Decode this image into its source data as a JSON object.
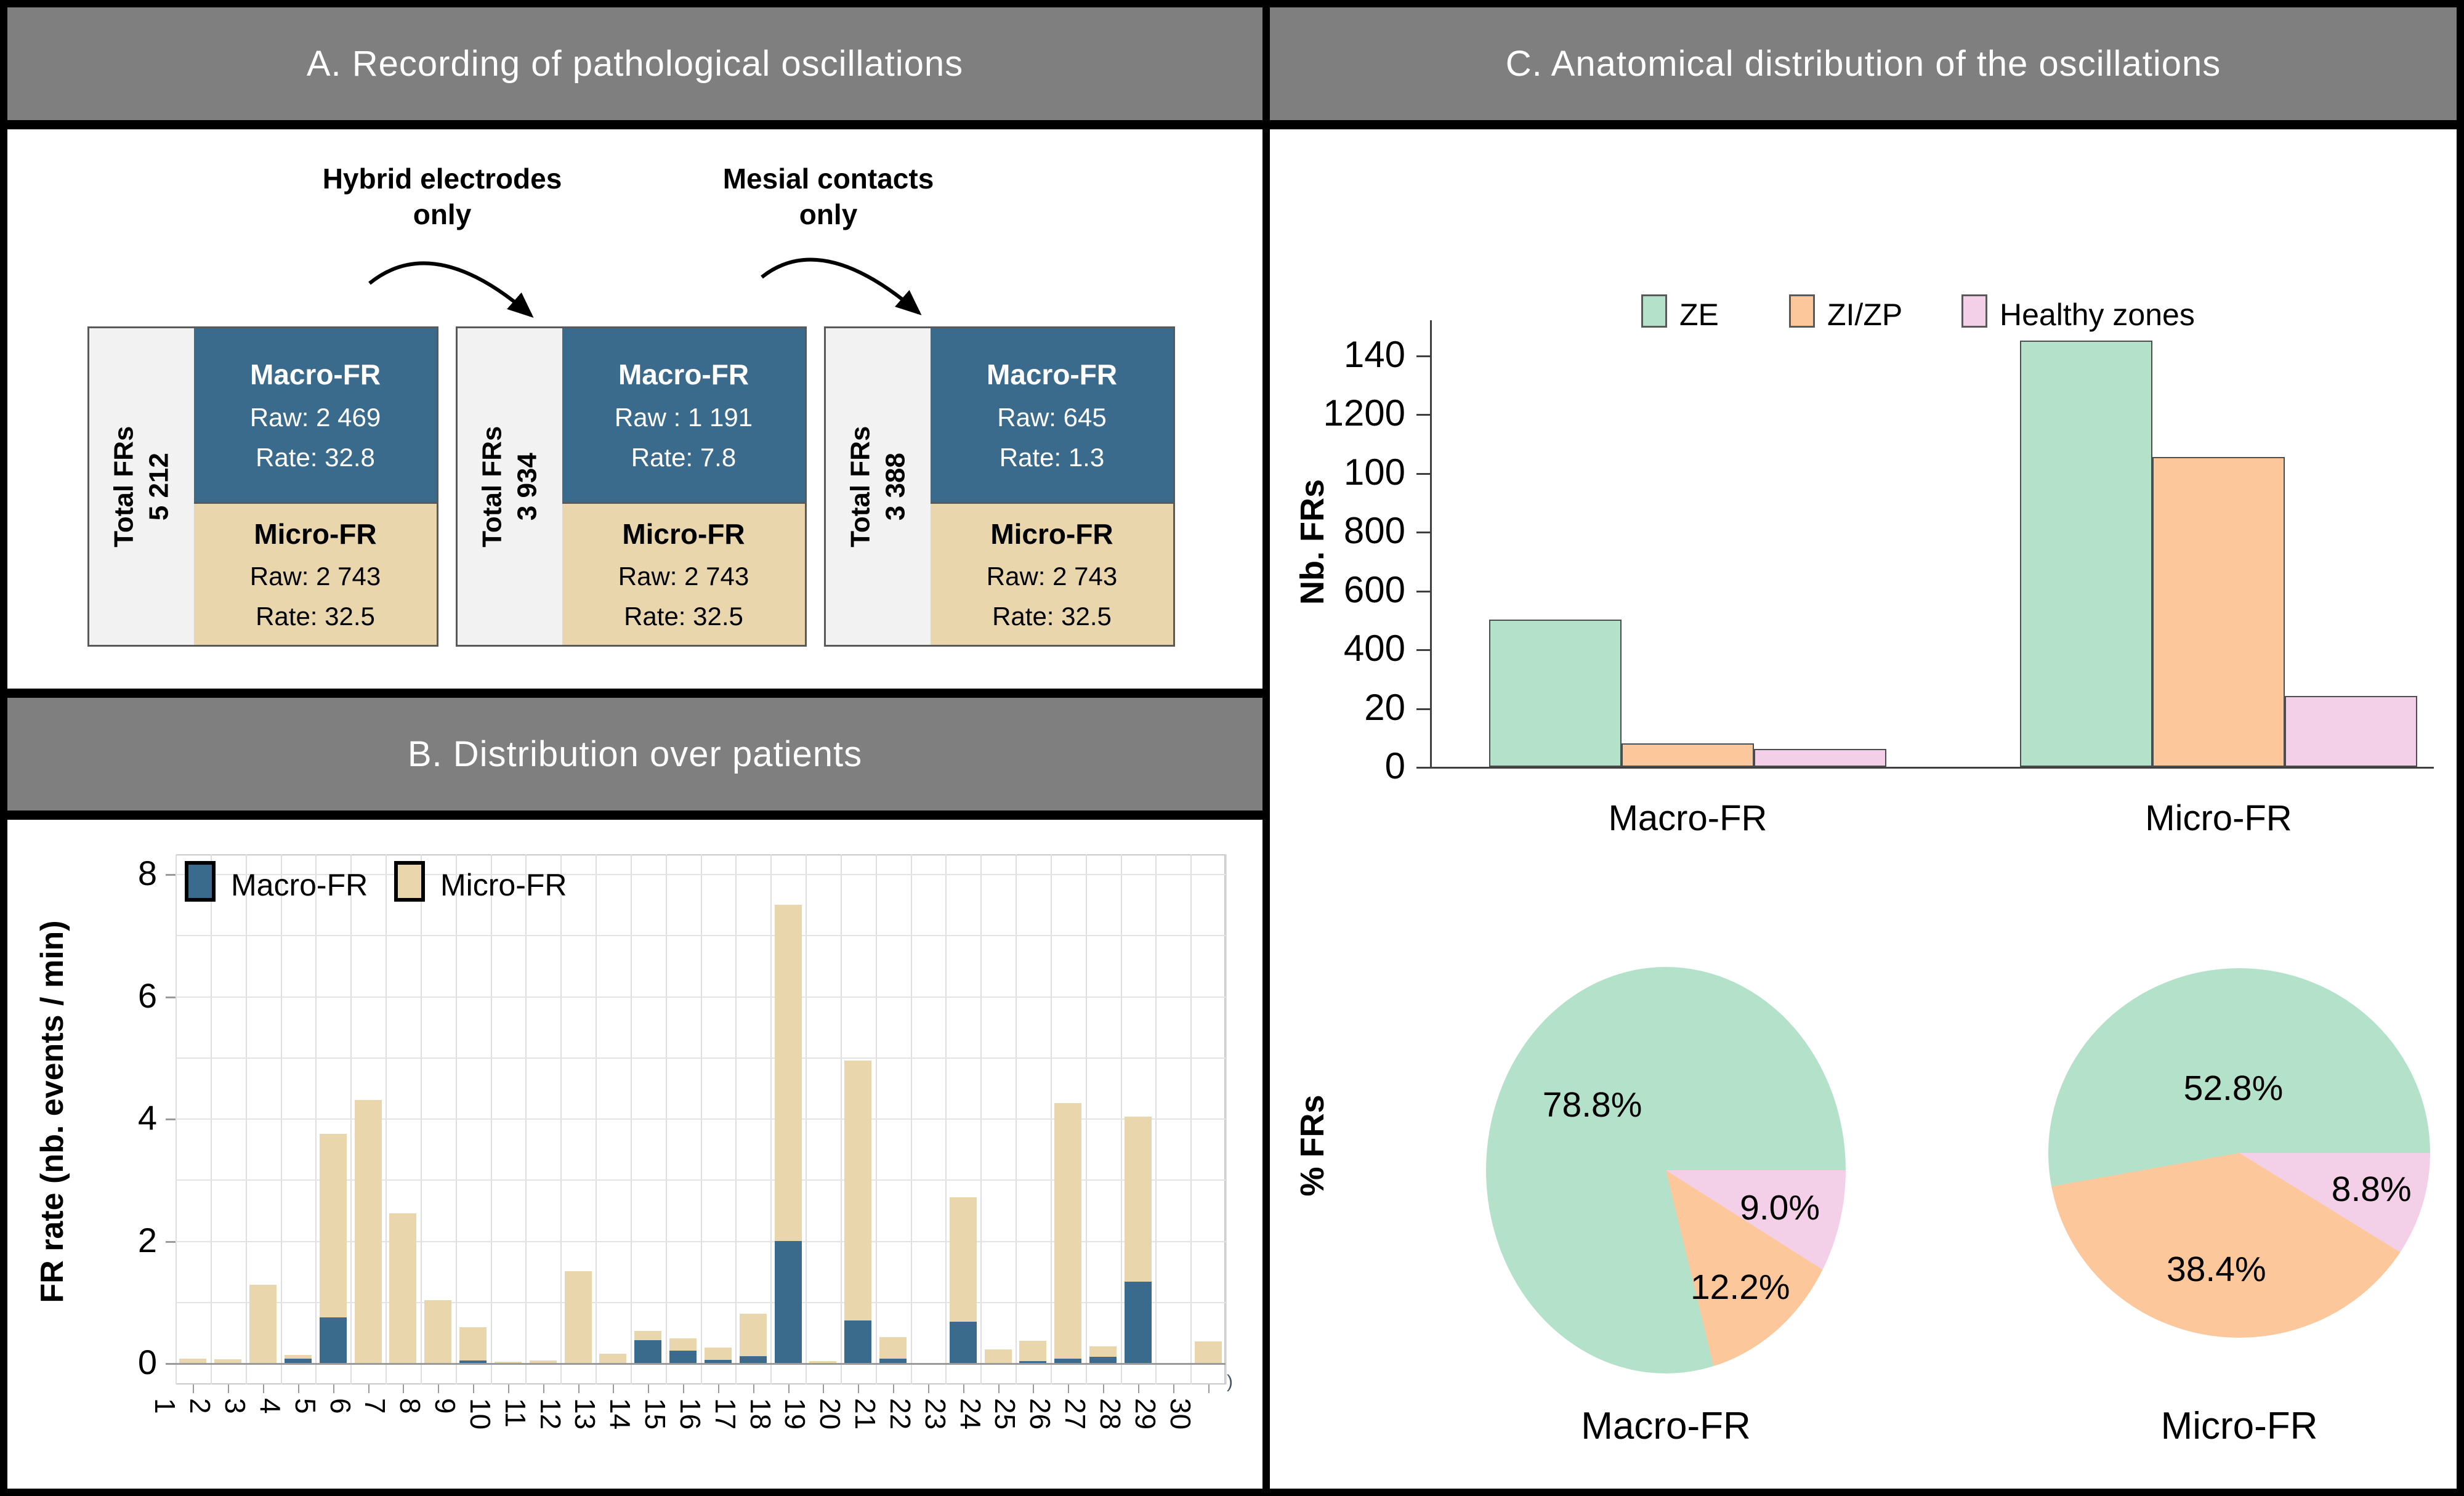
{
  "colors": {
    "header_gray": "#7f7f7f",
    "macro_blue": "#3a6b8c",
    "micro_tan": "#e9d6ac",
    "ze_green": "#b3e1c9",
    "zizp_orange": "#fbc79b",
    "healthy_pink": "#f3cfe8",
    "box_border": "#595959",
    "strip_bg": "#f2f2f2",
    "axis_dark": "#404040",
    "grid_light": "#dedede"
  },
  "panel_a": {
    "title": "A. Recording of pathological oscillations",
    "hybrid": {
      "line1": "Hybrid electrodes",
      "line2": "only"
    },
    "mesial": {
      "line1": "Mesial contacts",
      "line2": "only"
    },
    "boxes": [
      {
        "total_label": "Total FRs",
        "total_value": "5 212",
        "macro": {
          "title": "Macro-FR",
          "raw": "Raw: 2 469",
          "rate": "Rate: 32.8"
        },
        "micro": {
          "title": "Micro-FR",
          "raw": "Raw: 2 743",
          "rate": "Rate: 32.5"
        }
      },
      {
        "total_label": "Total FRs",
        "total_value": "3 934",
        "macro": {
          "title": "Macro-FR",
          "raw": "Raw : 1 191",
          "rate": "Rate: 7.8"
        },
        "micro": {
          "title": "Micro-FR",
          "raw": "Raw: 2 743",
          "rate": "Rate: 32.5"
        }
      },
      {
        "total_label": "Total FRs",
        "total_value": "3 388",
        "macro": {
          "title": "Macro-FR",
          "raw": "Raw: 645",
          "rate": "Rate: 1.3"
        },
        "micro": {
          "title": "Micro-FR",
          "raw": "Raw: 2 743",
          "rate": "Rate: 32.5"
        }
      }
    ]
  },
  "panel_b": {
    "title": "B. Distribution over patients",
    "ylabel": "FR rate (nb. events / min)",
    "stray_mark": ")"
  },
  "panel_c": {
    "title": "C. Anatomical distribution of the oscillations",
    "legend": [
      "ZE",
      "ZI/ZP",
      "Healthy zones"
    ],
    "bar_ylabel": "Nb. FRs",
    "pie_ylabel": "% FRs"
  },
  "chart_data": [
    {
      "id": "patients_fr_rate",
      "type": "bar",
      "stacked": true,
      "xlabel": "",
      "ylabel": "FR rate (nb. events / min)",
      "categories": [
        "1",
        "2",
        "3",
        "4",
        "5",
        "6",
        "7",
        "8",
        "9",
        "10",
        "11",
        "12",
        "13",
        "14",
        "15",
        "16",
        "17",
        "18",
        "19",
        "20",
        "21",
        "22",
        "23",
        "24",
        "25",
        "26",
        "27",
        "28",
        "29",
        "30"
      ],
      "series": [
        {
          "name": "Macro-FR",
          "color_key": "macro_blue",
          "values": [
            0,
            0,
            0,
            0.07,
            0.75,
            0,
            0,
            0,
            0.04,
            0,
            0,
            0,
            0,
            0.37,
            0.2,
            0.05,
            0.11,
            2.0,
            0,
            0.7,
            0.07,
            0,
            0.68,
            0,
            0.03,
            0.07,
            0.1,
            1.33,
            0,
            0
          ]
        },
        {
          "name": "Micro-FR",
          "color_key": "micro_tan",
          "values": [
            0.07,
            0.06,
            1.28,
            0.06,
            3.0,
            4.3,
            2.45,
            1.03,
            0.54,
            0.02,
            0.04,
            1.5,
            0.15,
            0.15,
            0.2,
            0.2,
            0.7,
            5.5,
            0.03,
            4.25,
            0.35,
            0,
            2.03,
            0.22,
            0.33,
            4.18,
            0.17,
            2.7,
            0,
            0.35
          ]
        }
      ],
      "yticks": [
        0,
        2,
        4,
        6,
        8
      ],
      "ylim": [
        0,
        8.3
      ],
      "grid": true,
      "legend_position": "top-left"
    },
    {
      "id": "anatomy_counts",
      "type": "bar",
      "grouped": true,
      "ylabel": "Nb. FRs",
      "categories": [
        "Macro-FR",
        "Micro-FR"
      ],
      "series": [
        {
          "name": "ZE",
          "color_key": "ze_green",
          "values": [
            500,
            1450
          ]
        },
        {
          "name": "ZI/ZP",
          "color_key": "zizp_orange",
          "values": [
            80,
            1055
          ]
        },
        {
          "name": "Healthy zones",
          "color_key": "healthy_pink",
          "values": [
            60,
            240
          ]
        }
      ],
      "ylim": [
        0,
        1400
      ],
      "ytick_values": [
        0,
        200,
        400,
        600,
        800,
        1000,
        1200,
        1400
      ],
      "ytick_labels_as_displayed": [
        "0",
        "20",
        "400",
        "600",
        "800",
        "100",
        "1200",
        "140"
      ],
      "grid": false,
      "legend_position": "top-center"
    },
    {
      "id": "anatomy_pct_macro",
      "type": "pie",
      "title": "Macro-FR",
      "start_angle": "east",
      "direction": "clockwise",
      "slices": [
        {
          "name": "Healthy zones",
          "color_key": "healthy_pink",
          "value": 9.0,
          "label": "9.0%"
        },
        {
          "name": "ZI/ZP",
          "color_key": "zizp_orange",
          "value": 12.2,
          "label": "12.2%"
        },
        {
          "name": "ZE",
          "color_key": "ze_green",
          "value": 78.8,
          "label": "78.8%"
        }
      ]
    },
    {
      "id": "anatomy_pct_micro",
      "type": "pie",
      "title": "Micro-FR",
      "start_angle": "east",
      "direction": "clockwise",
      "slices": [
        {
          "name": "Healthy zones",
          "color_key": "healthy_pink",
          "value": 8.8,
          "label": "8.8%"
        },
        {
          "name": "ZI/ZP",
          "color_key": "zizp_orange",
          "value": 38.4,
          "label": "38.4%"
        },
        {
          "name": "ZE",
          "color_key": "ze_green",
          "value": 52.8,
          "label": "52.8%"
        }
      ]
    }
  ]
}
